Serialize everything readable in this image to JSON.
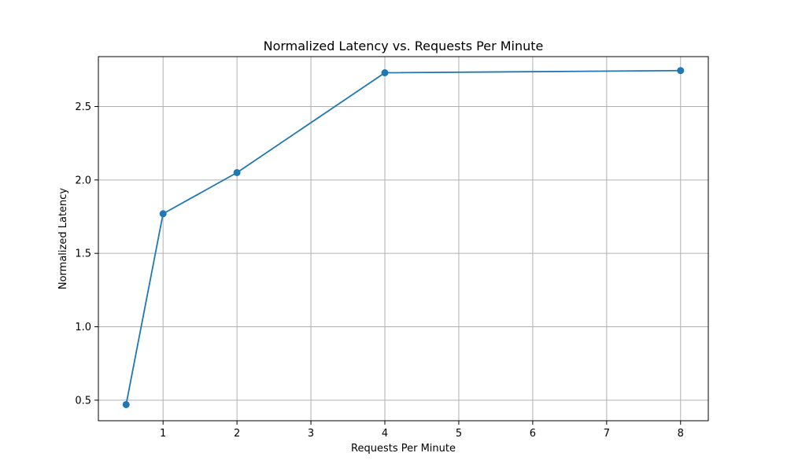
{
  "chart_data": {
    "type": "line",
    "title": "Normalized Latency vs. Requests Per Minute",
    "xlabel": "Requests Per Minute",
    "ylabel": "Normalized Latency",
    "xlim": [
      0.125,
      8.375
    ],
    "ylim": [
      0.36,
      2.84
    ],
    "xticks": [
      1,
      2,
      3,
      4,
      5,
      6,
      7,
      8
    ],
    "xtick_labels": [
      "1",
      "2",
      "3",
      "4",
      "5",
      "6",
      "7",
      "8"
    ],
    "yticks": [
      0.5,
      1.0,
      1.5,
      2.0,
      2.5
    ],
    "ytick_labels": [
      "0.5",
      "1.0",
      "1.5",
      "2.0",
      "2.5"
    ],
    "grid": true,
    "series": [
      {
        "color": "#1f77b4",
        "marker": "circle",
        "x": [
          0.5,
          1,
          2,
          4,
          8
        ],
        "y": [
          0.47,
          1.77,
          2.05,
          2.73,
          2.745
        ]
      }
    ]
  }
}
